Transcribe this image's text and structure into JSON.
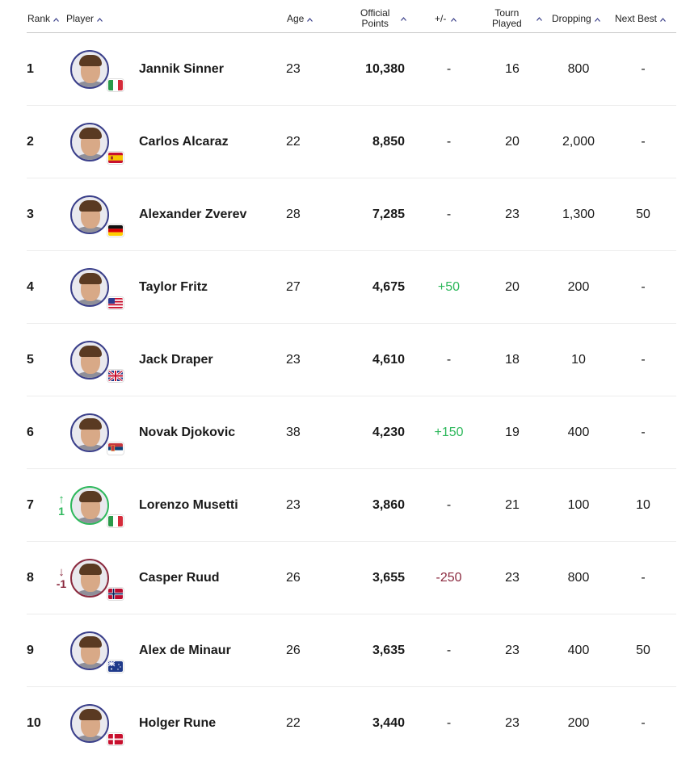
{
  "headers": {
    "rank": "Rank",
    "player": "Player",
    "age": "Age",
    "points_line1": "Official",
    "points_line2": "Points",
    "plusminus": "+/-",
    "played_line1": "Tourn",
    "played_line2": "Played",
    "dropping": "Dropping",
    "next_best": "Next Best"
  },
  "colors": {
    "accent": "#3a3f8a",
    "up": "#2eb85c",
    "down": "#8b2a3f"
  },
  "rows": [
    {
      "rank": "1",
      "move": "",
      "move_dir": "none",
      "name": "Jannik Sinner",
      "flag": "italy-flag-icon",
      "age": "23",
      "points": "10,380",
      "plusminus": "-",
      "pm_dir": "none",
      "played": "16",
      "dropping": "800",
      "next_best": "-"
    },
    {
      "rank": "2",
      "move": "",
      "move_dir": "none",
      "name": "Carlos Alcaraz",
      "flag": "spain-flag-icon",
      "age": "22",
      "points": "8,850",
      "plusminus": "-",
      "pm_dir": "none",
      "played": "20",
      "dropping": "2,000",
      "next_best": "-"
    },
    {
      "rank": "3",
      "move": "",
      "move_dir": "none",
      "name": "Alexander Zverev",
      "flag": "germany-flag-icon",
      "age": "28",
      "points": "7,285",
      "plusminus": "-",
      "pm_dir": "none",
      "played": "23",
      "dropping": "1,300",
      "next_best": "50"
    },
    {
      "rank": "4",
      "move": "",
      "move_dir": "none",
      "name": "Taylor Fritz",
      "flag": "usa-flag-icon",
      "age": "27",
      "points": "4,675",
      "plusminus": "+50",
      "pm_dir": "pos",
      "played": "20",
      "dropping": "200",
      "next_best": "-"
    },
    {
      "rank": "5",
      "move": "",
      "move_dir": "none",
      "name": "Jack Draper",
      "flag": "uk-flag-icon",
      "age": "23",
      "points": "4,610",
      "plusminus": "-",
      "pm_dir": "none",
      "played": "18",
      "dropping": "10",
      "next_best": "-"
    },
    {
      "rank": "6",
      "move": "",
      "move_dir": "none",
      "name": "Novak Djokovic",
      "flag": "serbia-flag-icon",
      "age": "38",
      "points": "4,230",
      "plusminus": "+150",
      "pm_dir": "pos",
      "played": "19",
      "dropping": "400",
      "next_best": "-"
    },
    {
      "rank": "7",
      "move": "1",
      "move_dir": "up",
      "name": "Lorenzo Musetti",
      "flag": "italy-flag-icon",
      "age": "23",
      "points": "3,860",
      "plusminus": "-",
      "pm_dir": "none",
      "played": "21",
      "dropping": "100",
      "next_best": "10"
    },
    {
      "rank": "8",
      "move": "-1",
      "move_dir": "down",
      "name": "Casper Ruud",
      "flag": "norway-flag-icon",
      "age": "26",
      "points": "3,655",
      "plusminus": "-250",
      "pm_dir": "neg",
      "played": "23",
      "dropping": "800",
      "next_best": "-"
    },
    {
      "rank": "9",
      "move": "",
      "move_dir": "none",
      "name": "Alex de Minaur",
      "flag": "australia-flag-icon",
      "age": "26",
      "points": "3,635",
      "plusminus": "-",
      "pm_dir": "none",
      "played": "23",
      "dropping": "400",
      "next_best": "50"
    },
    {
      "rank": "10",
      "move": "",
      "move_dir": "none",
      "name": "Holger Rune",
      "flag": "denmark-flag-icon",
      "age": "22",
      "points": "3,440",
      "plusminus": "-",
      "pm_dir": "none",
      "played": "23",
      "dropping": "200",
      "next_best": "-"
    }
  ]
}
